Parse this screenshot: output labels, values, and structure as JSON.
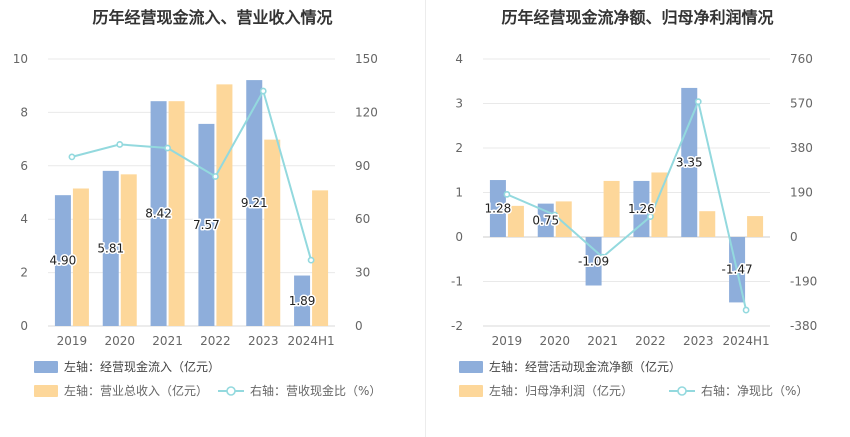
{
  "chart_data": [
    {
      "type": "bar",
      "title": "历年经营现金流入、营业收入情况",
      "categories": [
        "2019",
        "2020",
        "2021",
        "2022",
        "2023",
        "2024H1"
      ],
      "series": [
        {
          "name": "左轴：经营现金流入（亿元）",
          "axis": "left",
          "kind": "bar",
          "color": "#8eaedb",
          "values": [
            4.9,
            5.81,
            8.42,
            7.57,
            9.21,
            1.89
          ],
          "labels": [
            "4.90",
            "5.81",
            "8.42",
            "7.57",
            "9.21",
            "1.89"
          ]
        },
        {
          "name": "左轴：营业总收入（亿元）",
          "axis": "left",
          "kind": "bar",
          "color": "#fdd79a",
          "values": [
            5.15,
            5.68,
            8.42,
            9.05,
            6.98,
            5.08
          ]
        },
        {
          "name": "右轴：营收现金比（%）",
          "axis": "right",
          "kind": "line",
          "color": "#93d9de",
          "values": [
            95,
            102,
            100,
            84,
            132,
            37
          ]
        }
      ],
      "left_axis": {
        "ylim": [
          0,
          10
        ],
        "ticks": [
          "0",
          "2",
          "4",
          "6",
          "8",
          "10"
        ]
      },
      "right_axis": {
        "ylim": [
          0,
          150
        ],
        "ticks": [
          "0",
          "30",
          "60",
          "90",
          "120",
          "150"
        ]
      },
      "legend_position": "bottom-left"
    },
    {
      "type": "bar",
      "title": "历年经营现金流净额、归母净利润情况",
      "categories": [
        "2019",
        "2020",
        "2021",
        "2022",
        "2023",
        "2024H1"
      ],
      "series": [
        {
          "name": "左轴：经营活动现金流净额（亿元）",
          "axis": "left",
          "kind": "bar",
          "color": "#8eaedb",
          "values": [
            1.28,
            0.75,
            -1.09,
            1.26,
            3.35,
            -1.47
          ],
          "labels": [
            "1.28",
            "0.75",
            "-1.09",
            "1.26",
            "3.35",
            "-1.47"
          ]
        },
        {
          "name": "左轴：归母净利润（亿元）",
          "axis": "left",
          "kind": "bar",
          "color": "#fdd79a",
          "values": [
            0.7,
            0.8,
            1.26,
            1.45,
            0.58,
            0.47
          ]
        },
        {
          "name": "右轴：净现比（%）",
          "axis": "right",
          "kind": "line",
          "color": "#93d9de",
          "values": [
            182,
            94,
            -86,
            87,
            578,
            -312
          ]
        }
      ],
      "left_axis": {
        "ylim": [
          -2,
          4
        ],
        "ticks": [
          "-2",
          "-1",
          "0",
          "1",
          "2",
          "3",
          "4"
        ]
      },
      "right_axis": {
        "ylim": [
          -380,
          760
        ],
        "ticks": [
          "-380",
          "-190",
          "0",
          "190",
          "380",
          "570",
          "760"
        ]
      },
      "legend_position": "bottom-left"
    }
  ]
}
